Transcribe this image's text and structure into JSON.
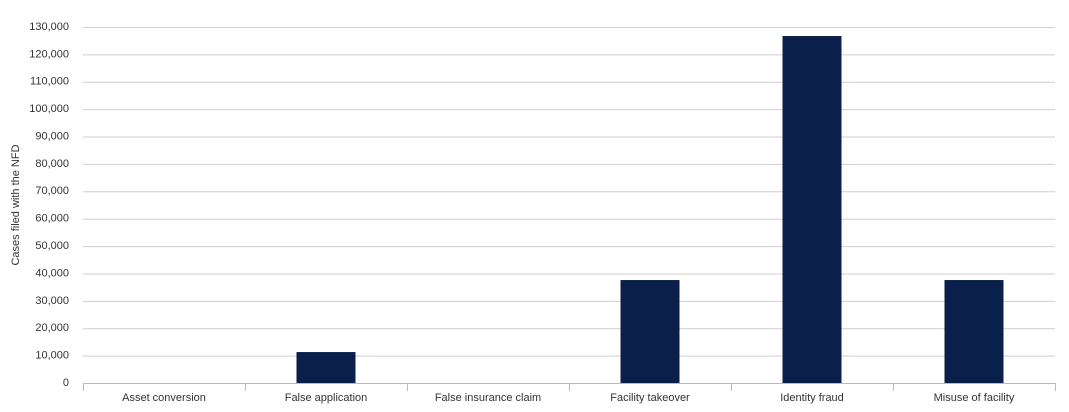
{
  "chart_data": {
    "type": "bar",
    "y_label": "Cases filed with the NFD",
    "categories": [
      "Asset conversion",
      "False application",
      "False insurance claim",
      "Facility takeover",
      "Identity fraud",
      "Misuse of facility"
    ],
    "values": [
      0,
      11300,
      0,
      37600,
      126700,
      37600
    ],
    "color": "#0a1f4a",
    "ylim": [
      0,
      130000
    ],
    "yticks": [
      0,
      {
        "value": 10000,
        "label": "10,000"
      },
      {
        "value": 20000,
        "label": "20,000"
      },
      {
        "value": 30000,
        "label": "30,000"
      },
      {
        "value": 40000,
        "label": "40,000"
      },
      {
        "value": 50000,
        "label": "50,000"
      },
      {
        "value": 60000,
        "label": "60,000"
      },
      {
        "value": 70000,
        "label": "70,000"
      },
      {
        "value": 80000,
        "label": "80,000"
      },
      {
        "value": 90000,
        "label": "90,000"
      },
      {
        "value": 100000,
        "label": "100,000"
      },
      {
        "value": 110000,
        "label": "110,000"
      },
      {
        "value": 120000,
        "label": "120,000"
      },
      {
        "value": 130000,
        "label": "130,000"
      }
    ],
    "grid": true
  }
}
